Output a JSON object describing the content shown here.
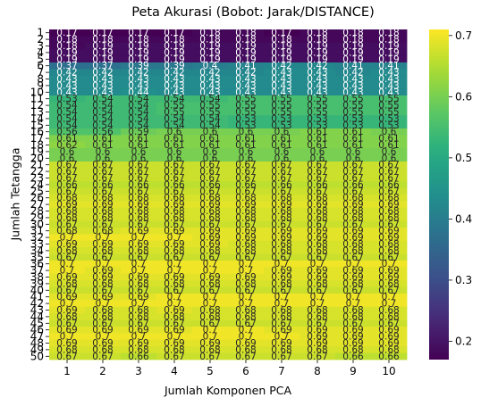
{
  "chart_data": {
    "type": "heatmap",
    "title": "Peta Akurasi (Bobot: Jarak/DISTANCE)",
    "xlabel": "Jumlah Komponen PCA",
    "ylabel": "Jumlah Tetangga",
    "x_categories": [
      "1",
      "2",
      "3",
      "4",
      "5",
      "6",
      "7",
      "8",
      "9",
      "10"
    ],
    "y_categories": [
      "1",
      "2",
      "3",
      "4",
      "5",
      "6",
      "7",
      "8",
      "9",
      "10",
      "11",
      "12",
      "13",
      "14",
      "15",
      "16",
      "17",
      "18",
      "19",
      "20",
      "21",
      "22",
      "23",
      "24",
      "25",
      "26",
      "27",
      "28",
      "29",
      "30",
      "31",
      "32",
      "33",
      "34",
      "35",
      "36",
      "37",
      "38",
      "39",
      "40",
      "41",
      "42",
      "43",
      "44",
      "45",
      "46",
      "47",
      "48",
      "49",
      "50"
    ],
    "y_tick_labels": [
      "1",
      "2",
      "3",
      "4",
      "5",
      "6",
      "7",
      "8",
      "9",
      "10",
      "11",
      "12",
      "13",
      "14",
      "15",
      "16",
      "17",
      "18",
      "19",
      "20",
      "21",
      "22",
      "23",
      "24",
      "25",
      "26",
      "27",
      "28",
      "29",
      "30",
      "31",
      "32",
      "33",
      "34",
      "35",
      "36",
      "37",
      "38",
      "39",
      "40",
      "41",
      "42",
      "43",
      "44",
      "45",
      "46",
      "47",
      "48",
      "49",
      "50"
    ],
    "colormap": "viridis",
    "vmin": 0.17,
    "vmax": 0.71,
    "colorbar_ticks": [
      "0.2",
      "0.3",
      "0.4",
      "0.5",
      "0.6",
      "0.7"
    ],
    "values": [
      [
        0.17,
        0.17,
        0.17,
        0.17,
        0.18,
        0.18,
        0.17,
        0.18,
        0.18,
        0.18
      ],
      [
        0.18,
        0.18,
        0.18,
        0.18,
        0.18,
        0.18,
        0.18,
        0.18,
        0.18,
        0.18
      ],
      [
        0.18,
        0.19,
        0.19,
        0.19,
        0.19,
        0.19,
        0.19,
        0.19,
        0.19,
        0.19
      ],
      [
        0.19,
        0.19,
        0.19,
        0.19,
        0.19,
        0.19,
        0.19,
        0.19,
        0.19,
        0.19
      ],
      [
        0.19,
        0.19,
        0.19,
        0.19,
        0.19,
        0.19,
        0.19,
        0.19,
        0.19,
        0.19
      ],
      [
        0.37,
        0.37,
        0.39,
        0.39,
        0.4,
        0.41,
        0.42,
        0.42,
        0.41,
        0.41
      ],
      [
        0.42,
        0.42,
        0.42,
        0.42,
        0.42,
        0.42,
        0.43,
        0.43,
        0.42,
        0.43
      ],
      [
        0.43,
        0.43,
        0.43,
        0.43,
        0.43,
        0.43,
        0.43,
        0.43,
        0.43,
        0.43
      ],
      [
        0.43,
        0.43,
        0.43,
        0.43,
        0.43,
        0.43,
        0.43,
        0.43,
        0.43,
        0.43
      ],
      [
        0.43,
        0.43,
        0.44,
        0.43,
        0.43,
        0.43,
        0.43,
        0.43,
        0.43,
        0.43
      ],
      [
        0.53,
        0.54,
        0.54,
        0.54,
        0.54,
        0.55,
        0.55,
        0.55,
        0.55,
        0.55
      ],
      [
        0.54,
        0.54,
        0.54,
        0.55,
        0.55,
        0.55,
        0.55,
        0.55,
        0.55,
        0.55
      ],
      [
        0.54,
        0.54,
        0.54,
        0.55,
        0.55,
        0.55,
        0.55,
        0.55,
        0.55,
        0.55
      ],
      [
        0.54,
        0.54,
        0.54,
        0.54,
        0.54,
        0.53,
        0.53,
        0.53,
        0.53,
        0.53
      ],
      [
        0.54,
        0.54,
        0.54,
        0.54,
        0.54,
        0.53,
        0.53,
        0.53,
        0.53,
        0.53
      ],
      [
        0.56,
        0.56,
        0.59,
        0.6,
        0.6,
        0.6,
        0.6,
        0.61,
        0.61,
        0.6
      ],
      [
        0.61,
        0.61,
        0.61,
        0.61,
        0.61,
        0.61,
        0.61,
        0.61,
        0.61,
        0.61
      ],
      [
        0.62,
        0.61,
        0.61,
        0.61,
        0.61,
        0.61,
        0.61,
        0.61,
        0.61,
        0.61
      ],
      [
        0.6,
        0.6,
        0.6,
        0.6,
        0.6,
        0.6,
        0.6,
        0.6,
        0.6,
        0.6
      ],
      [
        0.6,
        0.6,
        0.6,
        0.6,
        0.6,
        0.6,
        0.6,
        0.6,
        0.6,
        0.6
      ],
      [
        0.67,
        0.67,
        0.67,
        0.67,
        0.67,
        0.67,
        0.67,
        0.67,
        0.67,
        0.67
      ],
      [
        0.67,
        0.67,
        0.67,
        0.67,
        0.67,
        0.67,
        0.67,
        0.67,
        0.67,
        0.67
      ],
      [
        0.67,
        0.67,
        0.67,
        0.67,
        0.67,
        0.67,
        0.67,
        0.67,
        0.67,
        0.67
      ],
      [
        0.66,
        0.66,
        0.66,
        0.66,
        0.66,
        0.66,
        0.66,
        0.66,
        0.66,
        0.66
      ],
      [
        0.67,
        0.67,
        0.67,
        0.67,
        0.67,
        0.67,
        0.67,
        0.67,
        0.67,
        0.67
      ],
      [
        0.68,
        0.68,
        0.68,
        0.68,
        0.68,
        0.68,
        0.68,
        0.68,
        0.68,
        0.68
      ],
      [
        0.69,
        0.69,
        0.69,
        0.69,
        0.69,
        0.69,
        0.69,
        0.69,
        0.69,
        0.69
      ],
      [
        0.68,
        0.68,
        0.68,
        0.68,
        0.68,
        0.68,
        0.68,
        0.68,
        0.68,
        0.68
      ],
      [
        0.68,
        0.68,
        0.68,
        0.68,
        0.68,
        0.68,
        0.68,
        0.68,
        0.68,
        0.68
      ],
      [
        0.67,
        0.67,
        0.67,
        0.67,
        0.67,
        0.67,
        0.67,
        0.67,
        0.67,
        0.67
      ],
      [
        0.68,
        0.68,
        0.69,
        0.69,
        0.69,
        0.69,
        0.69,
        0.69,
        0.69,
        0.69
      ],
      [
        0.7,
        0.7,
        0.7,
        0.7,
        0.69,
        0.69,
        0.69,
        0.69,
        0.69,
        0.69
      ],
      [
        0.69,
        0.69,
        0.69,
        0.69,
        0.69,
        0.68,
        0.68,
        0.68,
        0.68,
        0.68
      ],
      [
        0.68,
        0.68,
        0.68,
        0.68,
        0.68,
        0.68,
        0.68,
        0.68,
        0.68,
        0.68
      ],
      [
        0.67,
        0.67,
        0.67,
        0.67,
        0.67,
        0.67,
        0.67,
        0.67,
        0.67,
        0.67
      ],
      [
        0.7,
        0.7,
        0.7,
        0.7,
        0.7,
        0.7,
        0.7,
        0.7,
        0.7,
        0.7
      ],
      [
        0.7,
        0.69,
        0.7,
        0.7,
        0.7,
        0.7,
        0.69,
        0.69,
        0.69,
        0.69
      ],
      [
        0.69,
        0.69,
        0.69,
        0.69,
        0.69,
        0.69,
        0.69,
        0.69,
        0.69,
        0.69
      ],
      [
        0.68,
        0.68,
        0.68,
        0.68,
        0.68,
        0.68,
        0.68,
        0.68,
        0.68,
        0.68
      ],
      [
        0.67,
        0.67,
        0.67,
        0.67,
        0.67,
        0.67,
        0.67,
        0.67,
        0.67,
        0.67
      ],
      [
        0.69,
        0.69,
        0.69,
        0.7,
        0.7,
        0.7,
        0.7,
        0.7,
        0.7,
        0.7
      ],
      [
        0.7,
        0.7,
        0.7,
        0.7,
        0.7,
        0.7,
        0.7,
        0.7,
        0.7,
        0.7
      ],
      [
        0.69,
        0.68,
        0.68,
        0.69,
        0.68,
        0.68,
        0.68,
        0.68,
        0.68,
        0.68
      ],
      [
        0.68,
        0.68,
        0.68,
        0.68,
        0.68,
        0.68,
        0.68,
        0.68,
        0.68,
        0.68
      ],
      [
        0.67,
        0.67,
        0.67,
        0.67,
        0.67,
        0.67,
        0.67,
        0.67,
        0.67,
        0.67
      ],
      [
        0.69,
        0.69,
        0.69,
        0.69,
        0.7,
        0.7,
        0.69,
        0.69,
        0.69,
        0.69
      ],
      [
        0.7,
        0.7,
        0.7,
        0.7,
        0.7,
        0.7,
        0.7,
        0.69,
        0.69,
        0.69
      ],
      [
        0.69,
        0.69,
        0.69,
        0.69,
        0.69,
        0.69,
        0.69,
        0.69,
        0.69,
        0.69
      ],
      [
        0.68,
        0.68,
        0.68,
        0.68,
        0.68,
        0.68,
        0.68,
        0.68,
        0.68,
        0.68
      ],
      [
        0.67,
        0.67,
        0.66,
        0.67,
        0.67,
        0.67,
        0.67,
        0.67,
        0.66,
        0.66
      ]
    ]
  }
}
